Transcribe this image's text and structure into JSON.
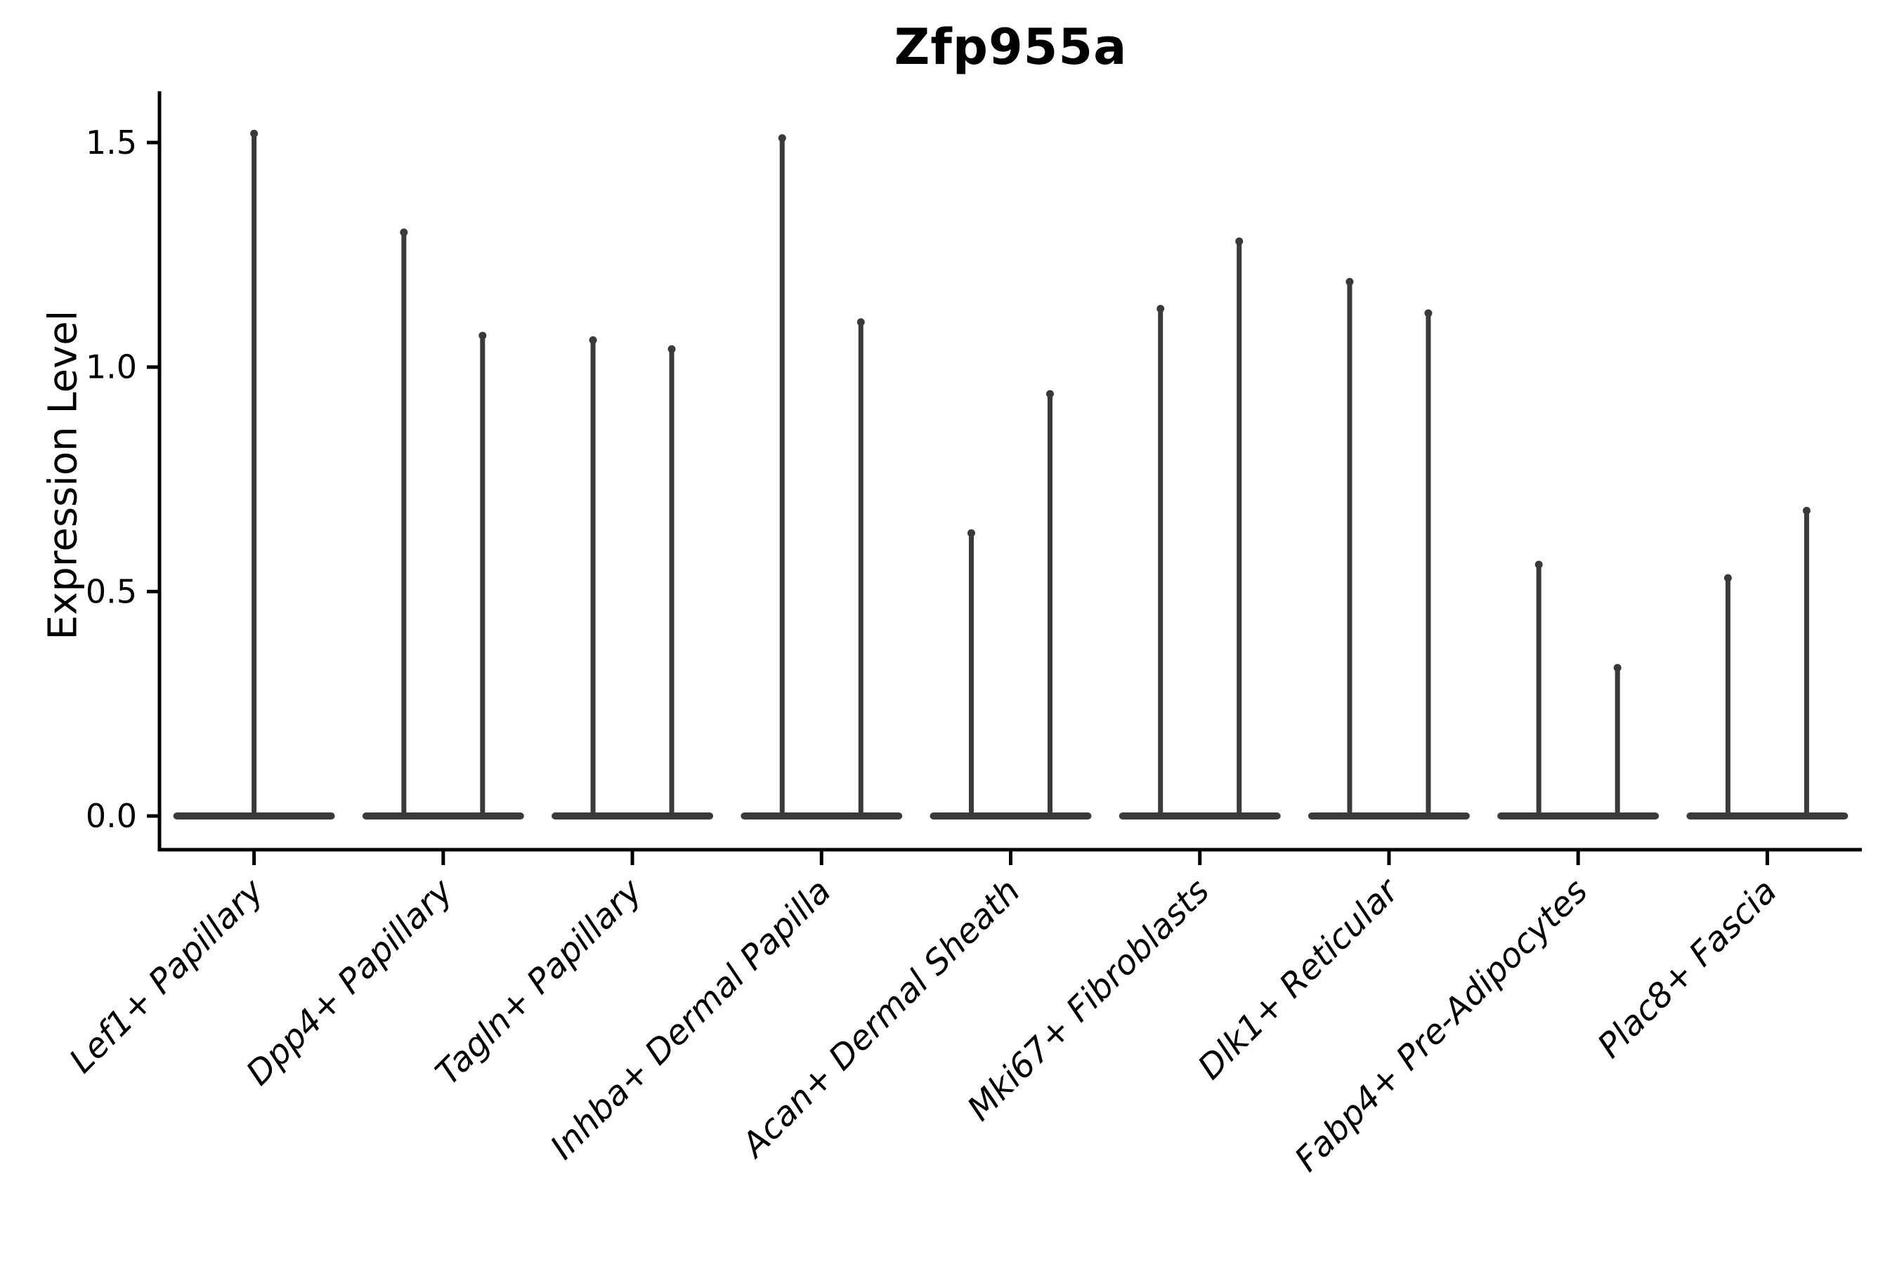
{
  "title": "Zfp955a",
  "y_axis": {
    "label": "Expression Level",
    "tick_labels": [
      "0.0",
      "0.5",
      "1.0",
      "1.5"
    ]
  },
  "colors": {
    "violin_line": "#3a3a3a",
    "axis": "#000000",
    "background": "#ffffff"
  },
  "chart_data": {
    "type": "violin",
    "title": "Zfp955a",
    "xlabel": "",
    "ylabel": "Expression Level",
    "ylim": [
      -0.07,
      1.62
    ],
    "yticks": [
      0.0,
      0.5,
      1.0,
      1.5
    ],
    "grid": false,
    "legend_position": "none",
    "x_tick_rotation": 45,
    "description": "Needle-thin violins collapsed at 0 expression; each vertical spike reaches that violin group's maximum expression value.",
    "categories": [
      "Lef1+ Papillary",
      "Dpp4+ Papillary",
      "Tagln+ Papillary",
      "Inhba+ Dermal Papilla",
      "Acan+ Dermal Sheath",
      "Mki67+ Fibroblasts",
      "Dlk1+ Reticular",
      "Fabp4+ Pre-Adipocytes",
      "Plac8+ Fascia"
    ],
    "violins": [
      {
        "category": "Lef1+ Papillary",
        "baseline_value": 0.0,
        "group_maxima": [
          1.52
        ]
      },
      {
        "category": "Dpp4+ Papillary",
        "baseline_value": 0.0,
        "group_maxima": [
          1.3,
          1.07
        ]
      },
      {
        "category": "Tagln+ Papillary",
        "baseline_value": 0.0,
        "group_maxima": [
          1.06,
          1.04
        ]
      },
      {
        "category": "Inhba+ Dermal Papilla",
        "baseline_value": 0.0,
        "group_maxima": [
          1.51,
          1.1
        ]
      },
      {
        "category": "Acan+ Dermal Sheath",
        "baseline_value": 0.0,
        "group_maxima": [
          0.63,
          0.94
        ]
      },
      {
        "category": "Mki67+ Fibroblasts",
        "baseline_value": 0.0,
        "group_maxima": [
          1.13,
          1.28
        ]
      },
      {
        "category": "Dlk1+ Reticular",
        "baseline_value": 0.0,
        "group_maxima": [
          1.19,
          1.12
        ]
      },
      {
        "category": "Fabp4+ Pre-Adipocytes",
        "baseline_value": 0.0,
        "group_maxima": [
          0.56,
          0.33
        ]
      },
      {
        "category": "Plac8+ Fascia",
        "baseline_value": 0.0,
        "group_maxima": [
          0.53,
          0.68
        ]
      }
    ]
  }
}
